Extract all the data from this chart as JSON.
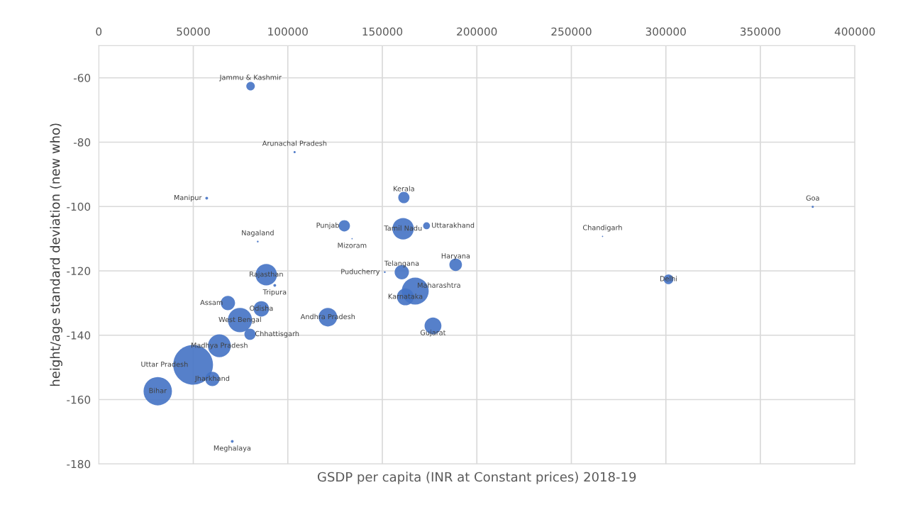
{
  "chart_data": {
    "type": "bubble",
    "xlabel": "GSDP per capita (INR at Constant prices) 2018-19",
    "ylabel": "height/age standard deviation (new who)",
    "xlim": [
      0,
      400000
    ],
    "xticks": [
      0,
      50000,
      100000,
      150000,
      200000,
      250000,
      300000,
      350000,
      400000
    ],
    "ylim": [
      -180,
      -50
    ],
    "yticks": [
      -60,
      -80,
      -100,
      -120,
      -140,
      -160,
      -180
    ],
    "grid": true,
    "legend": false,
    "series": [
      {
        "color": "#4472c4",
        "x": [
          80300,
          103600,
          57100,
          84100,
          129900,
          134000,
          161400,
          161000,
          173400,
          266500,
          377700,
          160300,
          151300,
          188800,
          301400,
          167400,
          162200,
          176800,
          88600,
          93100,
          68300,
          86000,
          74700,
          121200,
          80000,
          63800,
          49900,
          60100,
          31200,
          70600
        ],
        "values": [
          -62.6,
          -83.1,
          -97.4,
          -110.9,
          -106,
          -110,
          -97.2,
          -106.9,
          -106,
          -109.3,
          -100.1,
          -120.4,
          -120.4,
          -118.1,
          -122.6,
          -126.3,
          -128.1,
          -137.1,
          -121.2,
          -124.5,
          -130,
          -131.8,
          -135.3,
          -134.4,
          -139.7,
          -143.3,
          -149.2,
          -153.6,
          -157.4,
          -173
        ],
        "sizes": [
          0.046,
          0.003,
          0.005,
          0.002,
          0.08,
          0.001,
          0.08,
          0.29,
          0.03,
          0.001,
          0.003,
          0.13,
          0.002,
          0.1,
          0.06,
          0.46,
          0.18,
          0.18,
          0.29,
          0.005,
          0.13,
          0.15,
          0.37,
          0.22,
          0.08,
          0.33,
          1,
          0.13,
          0.51,
          0.005
        ]
      }
    ],
    "annotations": [
      {
        "text": "Jammu & Kashmir",
        "x": 80300,
        "y": -62.6
      },
      {
        "text": "Arunachal Pradesh",
        "x": 103600,
        "y": -83.1
      },
      {
        "text": "Manipur",
        "x": 57100,
        "y": -97.4
      },
      {
        "text": "Nagaland",
        "x": 84100,
        "y": -110.9
      },
      {
        "text": "Punjab",
        "x": 129900,
        "y": -106
      },
      {
        "text": "Mizoram",
        "x": 134000,
        "y": -110
      },
      {
        "text": "Kerala",
        "x": 161400,
        "y": -97.2
      },
      {
        "text": "Tamil Nadu",
        "x": 161000,
        "y": -106.9
      },
      {
        "text": "Uttarakhand",
        "x": 173400,
        "y": -106
      },
      {
        "text": "Chandigarh",
        "x": 266500,
        "y": -109.3
      },
      {
        "text": "Goa",
        "x": 377700,
        "y": -100.1
      },
      {
        "text": "Telangana",
        "x": 160300,
        "y": -120.4
      },
      {
        "text": "Puducherry",
        "x": 151300,
        "y": -120.4
      },
      {
        "text": "Haryana",
        "x": 188800,
        "y": -118.1
      },
      {
        "text": "Delhi",
        "x": 301400,
        "y": -122.6
      },
      {
        "text": "Maharashtra",
        "x": 167400,
        "y": -126.3
      },
      {
        "text": "Karnataka",
        "x": 162200,
        "y": -128.1
      },
      {
        "text": "Gujarat",
        "x": 176800,
        "y": -137.1
      },
      {
        "text": "Rajasthan",
        "x": 88600,
        "y": -121.2
      },
      {
        "text": "Tripura",
        "x": 93100,
        "y": -124.5
      },
      {
        "text": "Assam",
        "x": 68300,
        "y": -130
      },
      {
        "text": "Odisha",
        "x": 86000,
        "y": -131.8
      },
      {
        "text": "West Bengal",
        "x": 74700,
        "y": -135.3
      },
      {
        "text": "Andhra Pradesh",
        "x": 121200,
        "y": -134.4
      },
      {
        "text": "Chhattisgarh",
        "x": 80000,
        "y": -139.7
      },
      {
        "text": "Madhya Pradesh",
        "x": 63800,
        "y": -143.3
      },
      {
        "text": "Uttar Pradesh",
        "x": 49900,
        "y": -149.2
      },
      {
        "text": "Jharkhand",
        "x": 60100,
        "y": -153.6
      },
      {
        "text": "Bihar",
        "x": 31200,
        "y": -157.4
      },
      {
        "text": "Meghalaya",
        "x": 70600,
        "y": -173
      }
    ]
  }
}
